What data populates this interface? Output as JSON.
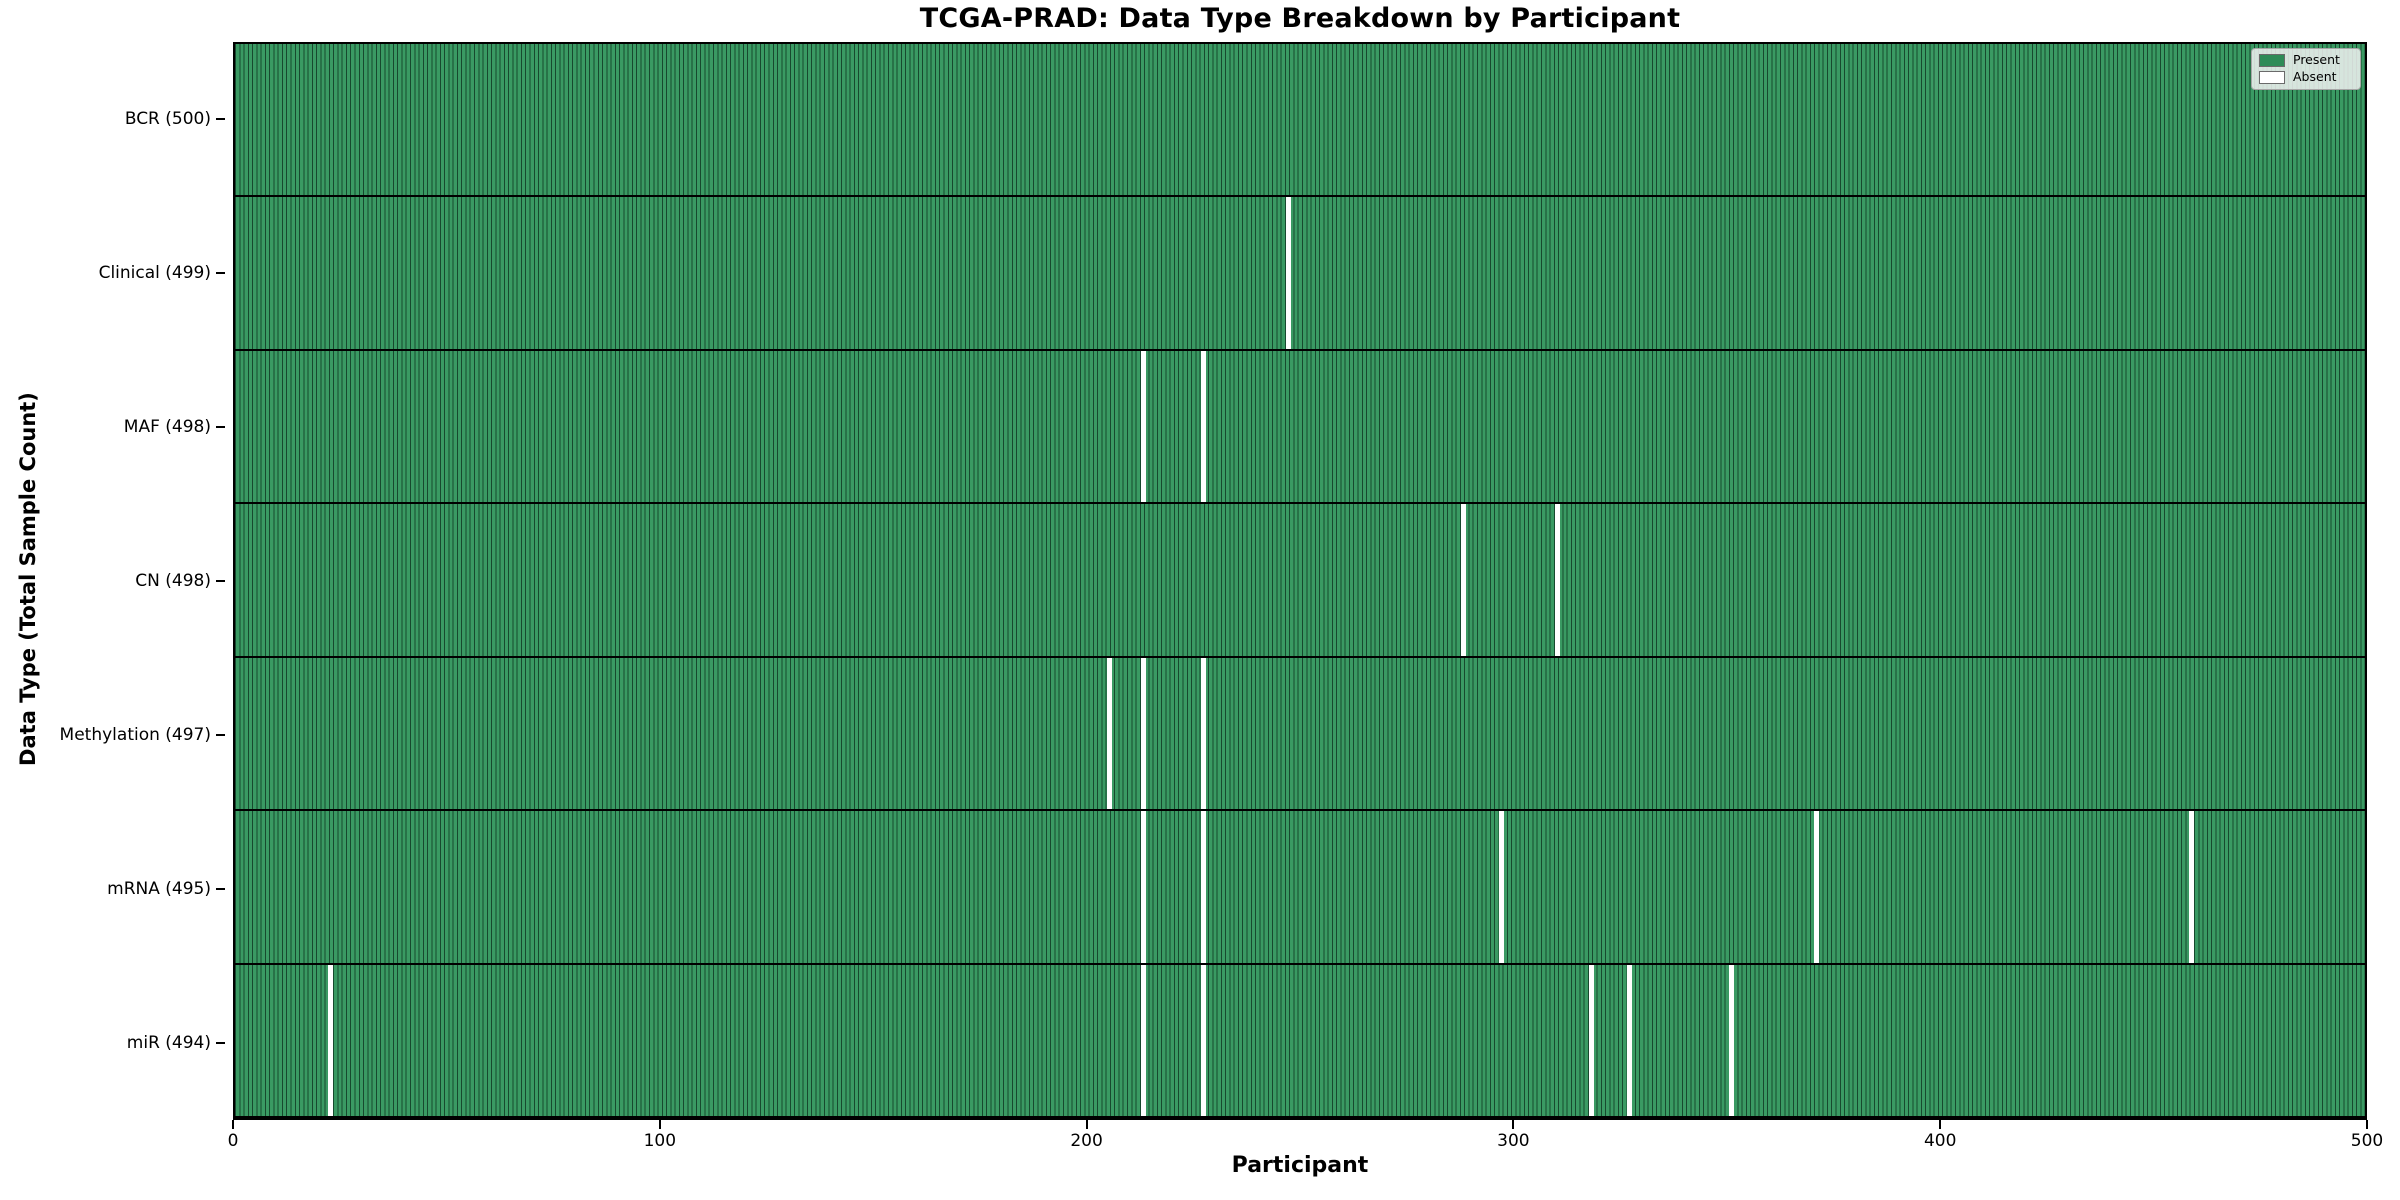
{
  "figure": {
    "title": "TCGA-PRAD: Data Type Breakdown by Participant",
    "xlabel": "Participant",
    "ylabel": "Data Type (Total Sample Count)"
  },
  "legend": {
    "present_label": "Present",
    "absent_label": "Absent"
  },
  "colors": {
    "present_fill": "#3a9a63",
    "present_legend": "#2e8b57",
    "cell_edge": "#17492e",
    "absent": "#ffffff",
    "axis": "#000000",
    "legend_bg": "#f2f2f2"
  },
  "chart_data": {
    "type": "heatmap",
    "title": "TCGA-PRAD: Data Type Breakdown by Participant",
    "xlabel": "Participant",
    "ylabel": "Data Type (Total Sample Count)",
    "x_ticks": [
      0,
      100,
      200,
      300,
      400,
      500
    ],
    "x_range": [
      0,
      500
    ],
    "participants": 500,
    "legend_entries": [
      "Present",
      "Absent"
    ],
    "legend_position": "upper right",
    "grid": false,
    "rows": [
      {
        "label": "BCR (500)",
        "data_type": "BCR",
        "present_count": 500,
        "absent_participants": []
      },
      {
        "label": "Clinical (499)",
        "data_type": "Clinical",
        "present_count": 499,
        "absent_participants": [
          247
        ]
      },
      {
        "label": "MAF (498)",
        "data_type": "MAF",
        "present_count": 498,
        "absent_participants": [
          213,
          227
        ]
      },
      {
        "label": "CN (498)",
        "data_type": "CN",
        "present_count": 498,
        "absent_participants": [
          288,
          310
        ]
      },
      {
        "label": "Methylation (497)",
        "data_type": "Methylation",
        "present_count": 497,
        "absent_participants": [
          205,
          213,
          227
        ]
      },
      {
        "label": "mRNA (495)",
        "data_type": "mRNA",
        "present_count": 495,
        "absent_participants": [
          213,
          227,
          297,
          371,
          459
        ]
      },
      {
        "label": "miR (494)",
        "data_type": "miR",
        "present_count": 494,
        "absent_participants": [
          22,
          213,
          227,
          318,
          327,
          351
        ]
      }
    ]
  }
}
